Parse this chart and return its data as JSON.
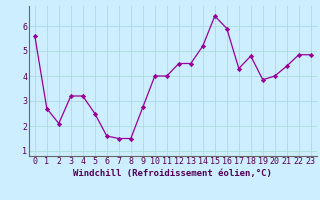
{
  "x": [
    0,
    1,
    2,
    3,
    4,
    5,
    6,
    7,
    8,
    9,
    10,
    11,
    12,
    13,
    14,
    15,
    16,
    17,
    18,
    19,
    20,
    21,
    22,
    23
  ],
  "y": [
    5.6,
    2.7,
    2.1,
    3.2,
    3.2,
    2.5,
    1.6,
    1.5,
    1.5,
    2.75,
    4.0,
    4.0,
    4.5,
    4.5,
    5.2,
    6.4,
    5.9,
    4.3,
    4.8,
    3.85,
    4.0,
    4.4,
    4.85,
    4.85
  ],
  "line_color": "#990099",
  "marker": "D",
  "marker_size": 2.2,
  "bg_color": "#cceeff",
  "grid_color": "#aadddd",
  "xlabel": "Windchill (Refroidissement éolien,°C)",
  "xlabel_fontsize": 6.5,
  "tick_fontsize": 6.0,
  "ylim": [
    0.8,
    6.8
  ],
  "yticks": [
    1,
    2,
    3,
    4,
    5,
    6
  ],
  "xticks": [
    0,
    1,
    2,
    3,
    4,
    5,
    6,
    7,
    8,
    9,
    10,
    11,
    12,
    13,
    14,
    15,
    16,
    17,
    18,
    19,
    20,
    21,
    22,
    23
  ],
  "spine_color": "#666666",
  "line_width": 0.9
}
